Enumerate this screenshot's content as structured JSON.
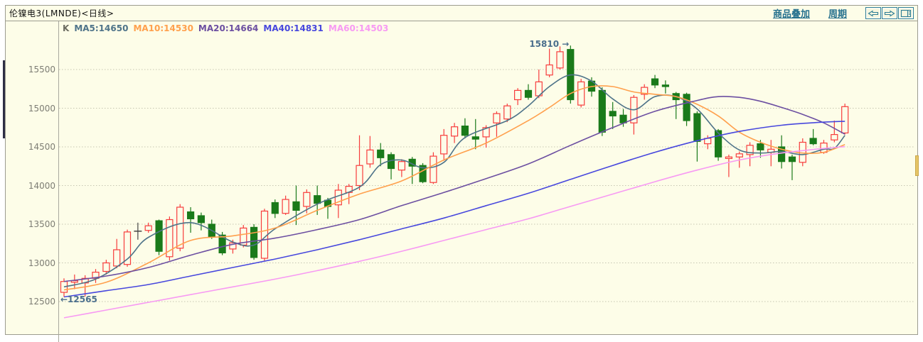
{
  "window": {
    "title": "伦镍电3(LMNDE)<日线>",
    "toolbar": {
      "overlay_link": "商品叠加",
      "period_link": "周期",
      "icons": [
        "scroll-left",
        "scroll-right",
        "split-view"
      ]
    }
  },
  "chart_data": {
    "type": "candlestick",
    "title": "伦镍电3(LMNDE)<日线>",
    "period": "日线",
    "legend_k": "K",
    "background": "#FDFDE8",
    "up_color": "#F73C3C",
    "down_color": "#1A7A1A",
    "neutral_color": "#444444",
    "grid": "dotted-horizontal",
    "y_axis": {
      "ticks": [
        15500,
        15000,
        14500,
        14000,
        13500,
        13000,
        12500
      ]
    },
    "annotations": [
      {
        "text": "15810",
        "arrow": "right",
        "candle_index": 48,
        "price": 15810
      },
      {
        "text": "12565",
        "arrow": "left",
        "candle_index": 2,
        "price": 12565
      }
    ],
    "candles": [
      [
        12620,
        12800,
        12560,
        12760,
        "r"
      ],
      [
        12750,
        12850,
        12660,
        12770,
        "r"
      ],
      [
        12740,
        12840,
        12565,
        12800,
        "r"
      ],
      [
        12800,
        12920,
        12740,
        12880,
        "r"
      ],
      [
        12890,
        13040,
        12850,
        13000,
        "r"
      ],
      [
        12960,
        13310,
        12930,
        13170,
        "r"
      ],
      [
        12980,
        13430,
        12950,
        13400,
        "r"
      ],
      [
        13400,
        13520,
        13300,
        13410,
        "k"
      ],
      [
        13420,
        13520,
        13390,
        13480,
        "r"
      ],
      [
        13545,
        13560,
        13100,
        13150,
        "g"
      ],
      [
        13080,
        13600,
        13030,
        13560,
        "r"
      ],
      [
        13190,
        13760,
        13150,
        13720,
        "r"
      ],
      [
        13660,
        13720,
        13390,
        13570,
        "g"
      ],
      [
        13610,
        13650,
        13420,
        13520,
        "g"
      ],
      [
        13500,
        13560,
        13310,
        13340,
        "g"
      ],
      [
        13360,
        13400,
        13100,
        13130,
        "g"
      ],
      [
        13180,
        13300,
        13120,
        13260,
        "r"
      ],
      [
        13230,
        13490,
        13200,
        13450,
        "r"
      ],
      [
        13460,
        13500,
        13040,
        13070,
        "g"
      ],
      [
        13060,
        13700,
        13020,
        13670,
        "r"
      ],
      [
        13780,
        13820,
        13580,
        13640,
        "g"
      ],
      [
        13640,
        13870,
        13620,
        13820,
        "r"
      ],
      [
        13790,
        14000,
        13490,
        13680,
        "g"
      ],
      [
        13730,
        13950,
        13640,
        13910,
        "r"
      ],
      [
        13870,
        14000,
        13620,
        13770,
        "g"
      ],
      [
        13810,
        13840,
        13570,
        13730,
        "g"
      ],
      [
        13750,
        14020,
        13580,
        13940,
        "r"
      ],
      [
        13910,
        14020,
        13760,
        13990,
        "r"
      ],
      [
        14000,
        14650,
        13940,
        14260,
        "r"
      ],
      [
        14280,
        14640,
        14230,
        14460,
        "r"
      ],
      [
        14460,
        14550,
        14250,
        14360,
        "g"
      ],
      [
        14400,
        14430,
        14080,
        14220,
        "g"
      ],
      [
        14200,
        14340,
        14110,
        14310,
        "r"
      ],
      [
        14340,
        14370,
        14020,
        14250,
        "g"
      ],
      [
        14260,
        14290,
        14030,
        14050,
        "g"
      ],
      [
        14040,
        14430,
        14020,
        14380,
        "r"
      ],
      [
        14410,
        14730,
        14320,
        14650,
        "r"
      ],
      [
        14640,
        14810,
        14550,
        14760,
        "r"
      ],
      [
        14770,
        14870,
        14610,
        14650,
        "g"
      ],
      [
        14630,
        14860,
        14470,
        14600,
        "g"
      ],
      [
        14630,
        14780,
        14490,
        14750,
        "r"
      ],
      [
        14810,
        14960,
        14630,
        14930,
        "r"
      ],
      [
        14860,
        15060,
        14820,
        15030,
        "r"
      ],
      [
        15110,
        15260,
        15040,
        15230,
        "r"
      ],
      [
        15230,
        15310,
        15110,
        15140,
        "g"
      ],
      [
        15160,
        15500,
        15130,
        15340,
        "r"
      ],
      [
        15430,
        15770,
        15400,
        15560,
        "r"
      ],
      [
        15520,
        15800,
        15500,
        15730,
        "r"
      ],
      [
        15760,
        15810,
        15060,
        15110,
        "g"
      ],
      [
        15040,
        15380,
        15010,
        15340,
        "r"
      ],
      [
        15350,
        15400,
        15150,
        15220,
        "g"
      ],
      [
        15230,
        15270,
        14640,
        14690,
        "g"
      ],
      [
        14960,
        15080,
        14730,
        14900,
        "g"
      ],
      [
        14910,
        14990,
        14760,
        14810,
        "g"
      ],
      [
        14810,
        15170,
        14660,
        15140,
        "r"
      ],
      [
        15180,
        15310,
        15110,
        15270,
        "r"
      ],
      [
        15380,
        15430,
        15260,
        15300,
        "g"
      ],
      [
        15300,
        15360,
        15190,
        15280,
        "g"
      ],
      [
        15190,
        15210,
        14860,
        15110,
        "g"
      ],
      [
        15180,
        15200,
        14770,
        14840,
        "g"
      ],
      [
        14930,
        14960,
        14310,
        14570,
        "g"
      ],
      [
        14540,
        14650,
        14470,
        14610,
        "r"
      ],
      [
        14710,
        14730,
        14320,
        14370,
        "g"
      ],
      [
        14350,
        14400,
        14110,
        14370,
        "r"
      ],
      [
        14370,
        14440,
        14230,
        14410,
        "r"
      ],
      [
        14400,
        14560,
        14250,
        14520,
        "r"
      ],
      [
        14540,
        14590,
        14360,
        14460,
        "g"
      ],
      [
        14430,
        14590,
        14250,
        14470,
        "r"
      ],
      [
        14500,
        14650,
        14220,
        14310,
        "g"
      ],
      [
        14370,
        14400,
        14070,
        14310,
        "g"
      ],
      [
        14300,
        14610,
        14250,
        14560,
        "r"
      ],
      [
        14610,
        14730,
        14520,
        14540,
        "g"
      ],
      [
        14430,
        14590,
        14410,
        14550,
        "r"
      ],
      [
        14590,
        14840,
        14560,
        14660,
        "r"
      ],
      [
        14680,
        15060,
        14660,
        15020,
        "r"
      ]
    ],
    "ma_series": [
      {
        "name": "MA5",
        "value": "14650",
        "color": "#4E7389",
        "points": [
          [
            0,
            12690
          ],
          [
            3,
            12790
          ],
          [
            6,
            13050
          ],
          [
            8,
            13330
          ],
          [
            12,
            13520
          ],
          [
            16,
            13270
          ],
          [
            18,
            13230
          ],
          [
            20,
            13440
          ],
          [
            24,
            13760
          ],
          [
            28,
            13980
          ],
          [
            30,
            14270
          ],
          [
            32,
            14330
          ],
          [
            34,
            14230
          ],
          [
            36,
            14300
          ],
          [
            38,
            14620
          ],
          [
            42,
            14840
          ],
          [
            44,
            15030
          ],
          [
            46,
            15280
          ],
          [
            48,
            15430
          ],
          [
            50,
            15350
          ],
          [
            52,
            15120
          ],
          [
            54,
            14980
          ],
          [
            56,
            15150
          ],
          [
            58,
            15150
          ],
          [
            60,
            14990
          ],
          [
            62,
            14680
          ],
          [
            64,
            14460
          ],
          [
            66,
            14420
          ],
          [
            68,
            14440
          ],
          [
            70,
            14400
          ],
          [
            72,
            14470
          ],
          [
            73,
            14480
          ],
          [
            74,
            14650
          ]
        ]
      },
      {
        "name": "MA10",
        "value": "14530",
        "color": "#FFA04D",
        "points": [
          [
            0,
            12650
          ],
          [
            4,
            12750
          ],
          [
            8,
            13000
          ],
          [
            12,
            13290
          ],
          [
            16,
            13350
          ],
          [
            20,
            13450
          ],
          [
            24,
            13680
          ],
          [
            28,
            13890
          ],
          [
            32,
            14060
          ],
          [
            36,
            14330
          ],
          [
            40,
            14550
          ],
          [
            44,
            14840
          ],
          [
            46,
            15010
          ],
          [
            48,
            15190
          ],
          [
            50,
            15280
          ],
          [
            52,
            15280
          ],
          [
            54,
            15210
          ],
          [
            56,
            15180
          ],
          [
            58,
            15150
          ],
          [
            60,
            15050
          ],
          [
            62,
            14900
          ],
          [
            64,
            14690
          ],
          [
            66,
            14560
          ],
          [
            68,
            14470
          ],
          [
            70,
            14420
          ],
          [
            72,
            14430
          ],
          [
            74,
            14530
          ]
        ]
      },
      {
        "name": "MA20",
        "value": "14664",
        "color": "#6C4FA1",
        "points": [
          [
            0,
            12760
          ],
          [
            4,
            12830
          ],
          [
            8,
            12940
          ],
          [
            12,
            13100
          ],
          [
            16,
            13240
          ],
          [
            20,
            13320
          ],
          [
            24,
            13430
          ],
          [
            28,
            13560
          ],
          [
            32,
            13740
          ],
          [
            36,
            13910
          ],
          [
            40,
            14090
          ],
          [
            44,
            14280
          ],
          [
            48,
            14520
          ],
          [
            52,
            14750
          ],
          [
            56,
            14960
          ],
          [
            60,
            15100
          ],
          [
            62,
            15150
          ],
          [
            64,
            15140
          ],
          [
            66,
            15090
          ],
          [
            68,
            15010
          ],
          [
            70,
            14920
          ],
          [
            72,
            14810
          ],
          [
            74,
            14664
          ]
        ]
      },
      {
        "name": "MA40",
        "value": "14831",
        "color": "#4747DD",
        "points": [
          [
            0,
            12560
          ],
          [
            4,
            12640
          ],
          [
            8,
            12720
          ],
          [
            12,
            12830
          ],
          [
            16,
            12940
          ],
          [
            20,
            13050
          ],
          [
            24,
            13170
          ],
          [
            28,
            13300
          ],
          [
            32,
            13440
          ],
          [
            36,
            13580
          ],
          [
            40,
            13740
          ],
          [
            44,
            13900
          ],
          [
            48,
            14080
          ],
          [
            52,
            14260
          ],
          [
            56,
            14430
          ],
          [
            60,
            14580
          ],
          [
            64,
            14700
          ],
          [
            68,
            14780
          ],
          [
            72,
            14820
          ],
          [
            74,
            14831
          ]
        ]
      },
      {
        "name": "MA60",
        "value": "14503",
        "color": "#F79AF3",
        "points": [
          [
            0,
            12290
          ],
          [
            4,
            12390
          ],
          [
            8,
            12490
          ],
          [
            12,
            12590
          ],
          [
            16,
            12690
          ],
          [
            20,
            12790
          ],
          [
            24,
            12900
          ],
          [
            28,
            13020
          ],
          [
            32,
            13150
          ],
          [
            36,
            13290
          ],
          [
            40,
            13430
          ],
          [
            44,
            13570
          ],
          [
            48,
            13730
          ],
          [
            52,
            13890
          ],
          [
            56,
            14050
          ],
          [
            60,
            14200
          ],
          [
            64,
            14330
          ],
          [
            68,
            14420
          ],
          [
            72,
            14480
          ],
          [
            74,
            14503
          ]
        ]
      }
    ]
  }
}
